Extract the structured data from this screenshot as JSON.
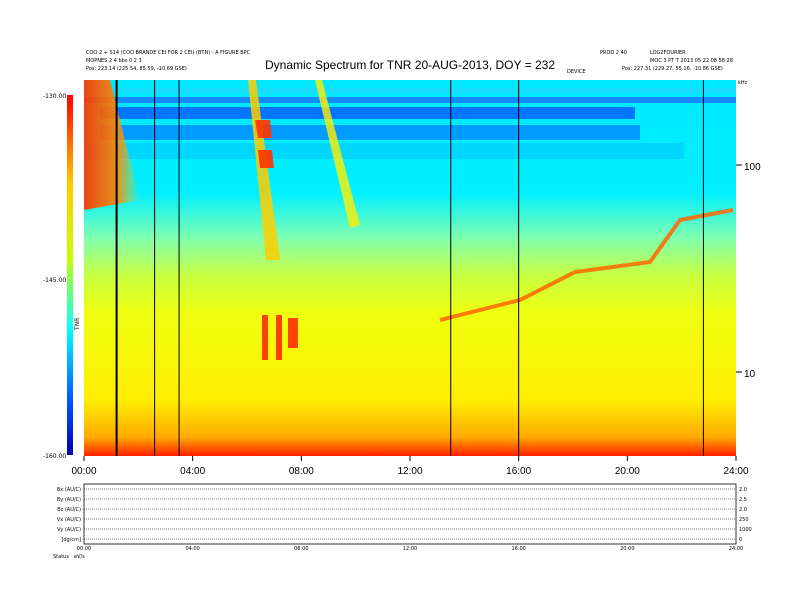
{
  "chart_data": {
    "type": "heatmap",
    "title": "Dynamic Spectrum for TNR 20-AUG-2013, DOY = 232",
    "header_left": {
      "line1": "COO 2 + S14 (COO BRANDE CEI FOR 2 CEI) (BTN) - A FIGURE BPC",
      "line2": "MOPNES 2 4 bbs 0 2 3",
      "line3": "Pos:   223.14 (225.54, 85.59, -10.69 GSE)"
    },
    "header_right": {
      "line1": "LOG2FOURIER",
      "line2": "MOC 3 PT T 2013 05 22 08 58 28",
      "line3": "Pos:   227.31 (229.27, 55.16, -10.86 GSE)"
    },
    "header_mid_right": "PROD 2 40",
    "header_mid": "DEVICE",
    "x_ticks": [
      "00:00",
      "04:00",
      "08:00",
      "12:00",
      "16:00",
      "20:00",
      "24:00"
    ],
    "x_range": [
      0,
      24
    ],
    "right_axis_ticks": [
      "100",
      "10"
    ],
    "right_axis_unit": "kHz",
    "colorbar_ticks": [
      "-130.00",
      "-145.00",
      "-160.00"
    ],
    "colorbar_range": [
      -160,
      -130
    ],
    "colorbar_label": "TNR",
    "vertical_lines_hours": [
      1.2,
      2.6,
      3.5,
      13.5,
      16.0,
      22.8
    ],
    "bands": [
      {
        "label": "Bx (AU/C)",
        "right": "2.0"
      },
      {
        "label": "By (AU/C)",
        "right": "2.5"
      },
      {
        "label": "Bz (AU/C)",
        "right": "2.0"
      },
      {
        "label": "Vx (AU/C)",
        "right": "250"
      },
      {
        "label": "Vy (AU/C)",
        "right": "1000"
      },
      {
        "label": "[dg/cm]",
        "right": "0"
      }
    ],
    "footer_label": "Status",
    "footer_unit": "eV/s",
    "small_x_ticks": [
      "00:00",
      "04:00",
      "08:00",
      "12:00",
      "16:00",
      "20:00",
      "24:00"
    ]
  }
}
